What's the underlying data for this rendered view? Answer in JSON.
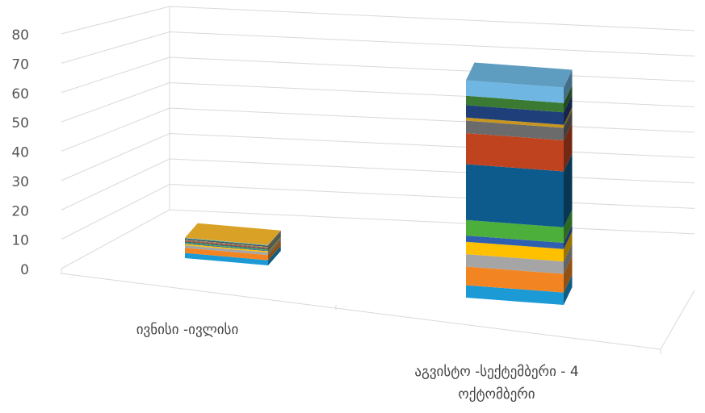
{
  "chart_data": {
    "type": "bar",
    "stacked": true,
    "three_d": true,
    "title": "",
    "xlabel": "",
    "ylabel": "",
    "ylim": [
      0,
      80
    ],
    "yticks": [
      "0",
      "10",
      "20",
      "30",
      "40",
      "50",
      "60",
      "70",
      "80"
    ],
    "grid": true,
    "legend": "none",
    "categories": [
      "ივნისი -ივლისი",
      "აგვისტო -სექტემბერი - 4 ოქტომბერი"
    ],
    "category_lines": [
      [
        "ივნისი -ივლისი"
      ],
      [
        "აგვისტო -სექტემბერი - 4",
        "ოქტომბერი"
      ]
    ],
    "series": [
      {
        "color": "#1b9ad6",
        "values": [
          2,
          4
        ]
      },
      {
        "color": "#f28522",
        "values": [
          2,
          6
        ]
      },
      {
        "color": "#a5a5a5",
        "values": [
          1,
          4
        ]
      },
      {
        "color": "#ffc000",
        "values": [
          0.5,
          4
        ]
      },
      {
        "color": "#2e5fb0",
        "values": [
          0.3,
          2
        ]
      },
      {
        "color": "#4caf3c",
        "values": [
          0.3,
          5
        ]
      },
      {
        "color": "#0d5b8c",
        "values": [
          0.3,
          18
        ]
      },
      {
        "color": "#c0431f",
        "values": [
          0.3,
          10
        ]
      },
      {
        "color": "#6b6b6b",
        "values": [
          0.3,
          4
        ]
      },
      {
        "color": "#c8961e",
        "values": [
          0.2,
          1
        ]
      },
      {
        "color": "#1f3f7a",
        "values": [
          0.3,
          4
        ]
      },
      {
        "color": "#3b7a33",
        "values": [
          0.2,
          3
        ]
      },
      {
        "color": "#6fb7e2",
        "values": [
          0.2,
          5
        ]
      },
      {
        "color": "#d9a227",
        "values": [
          0,
          0
        ]
      }
    ]
  }
}
